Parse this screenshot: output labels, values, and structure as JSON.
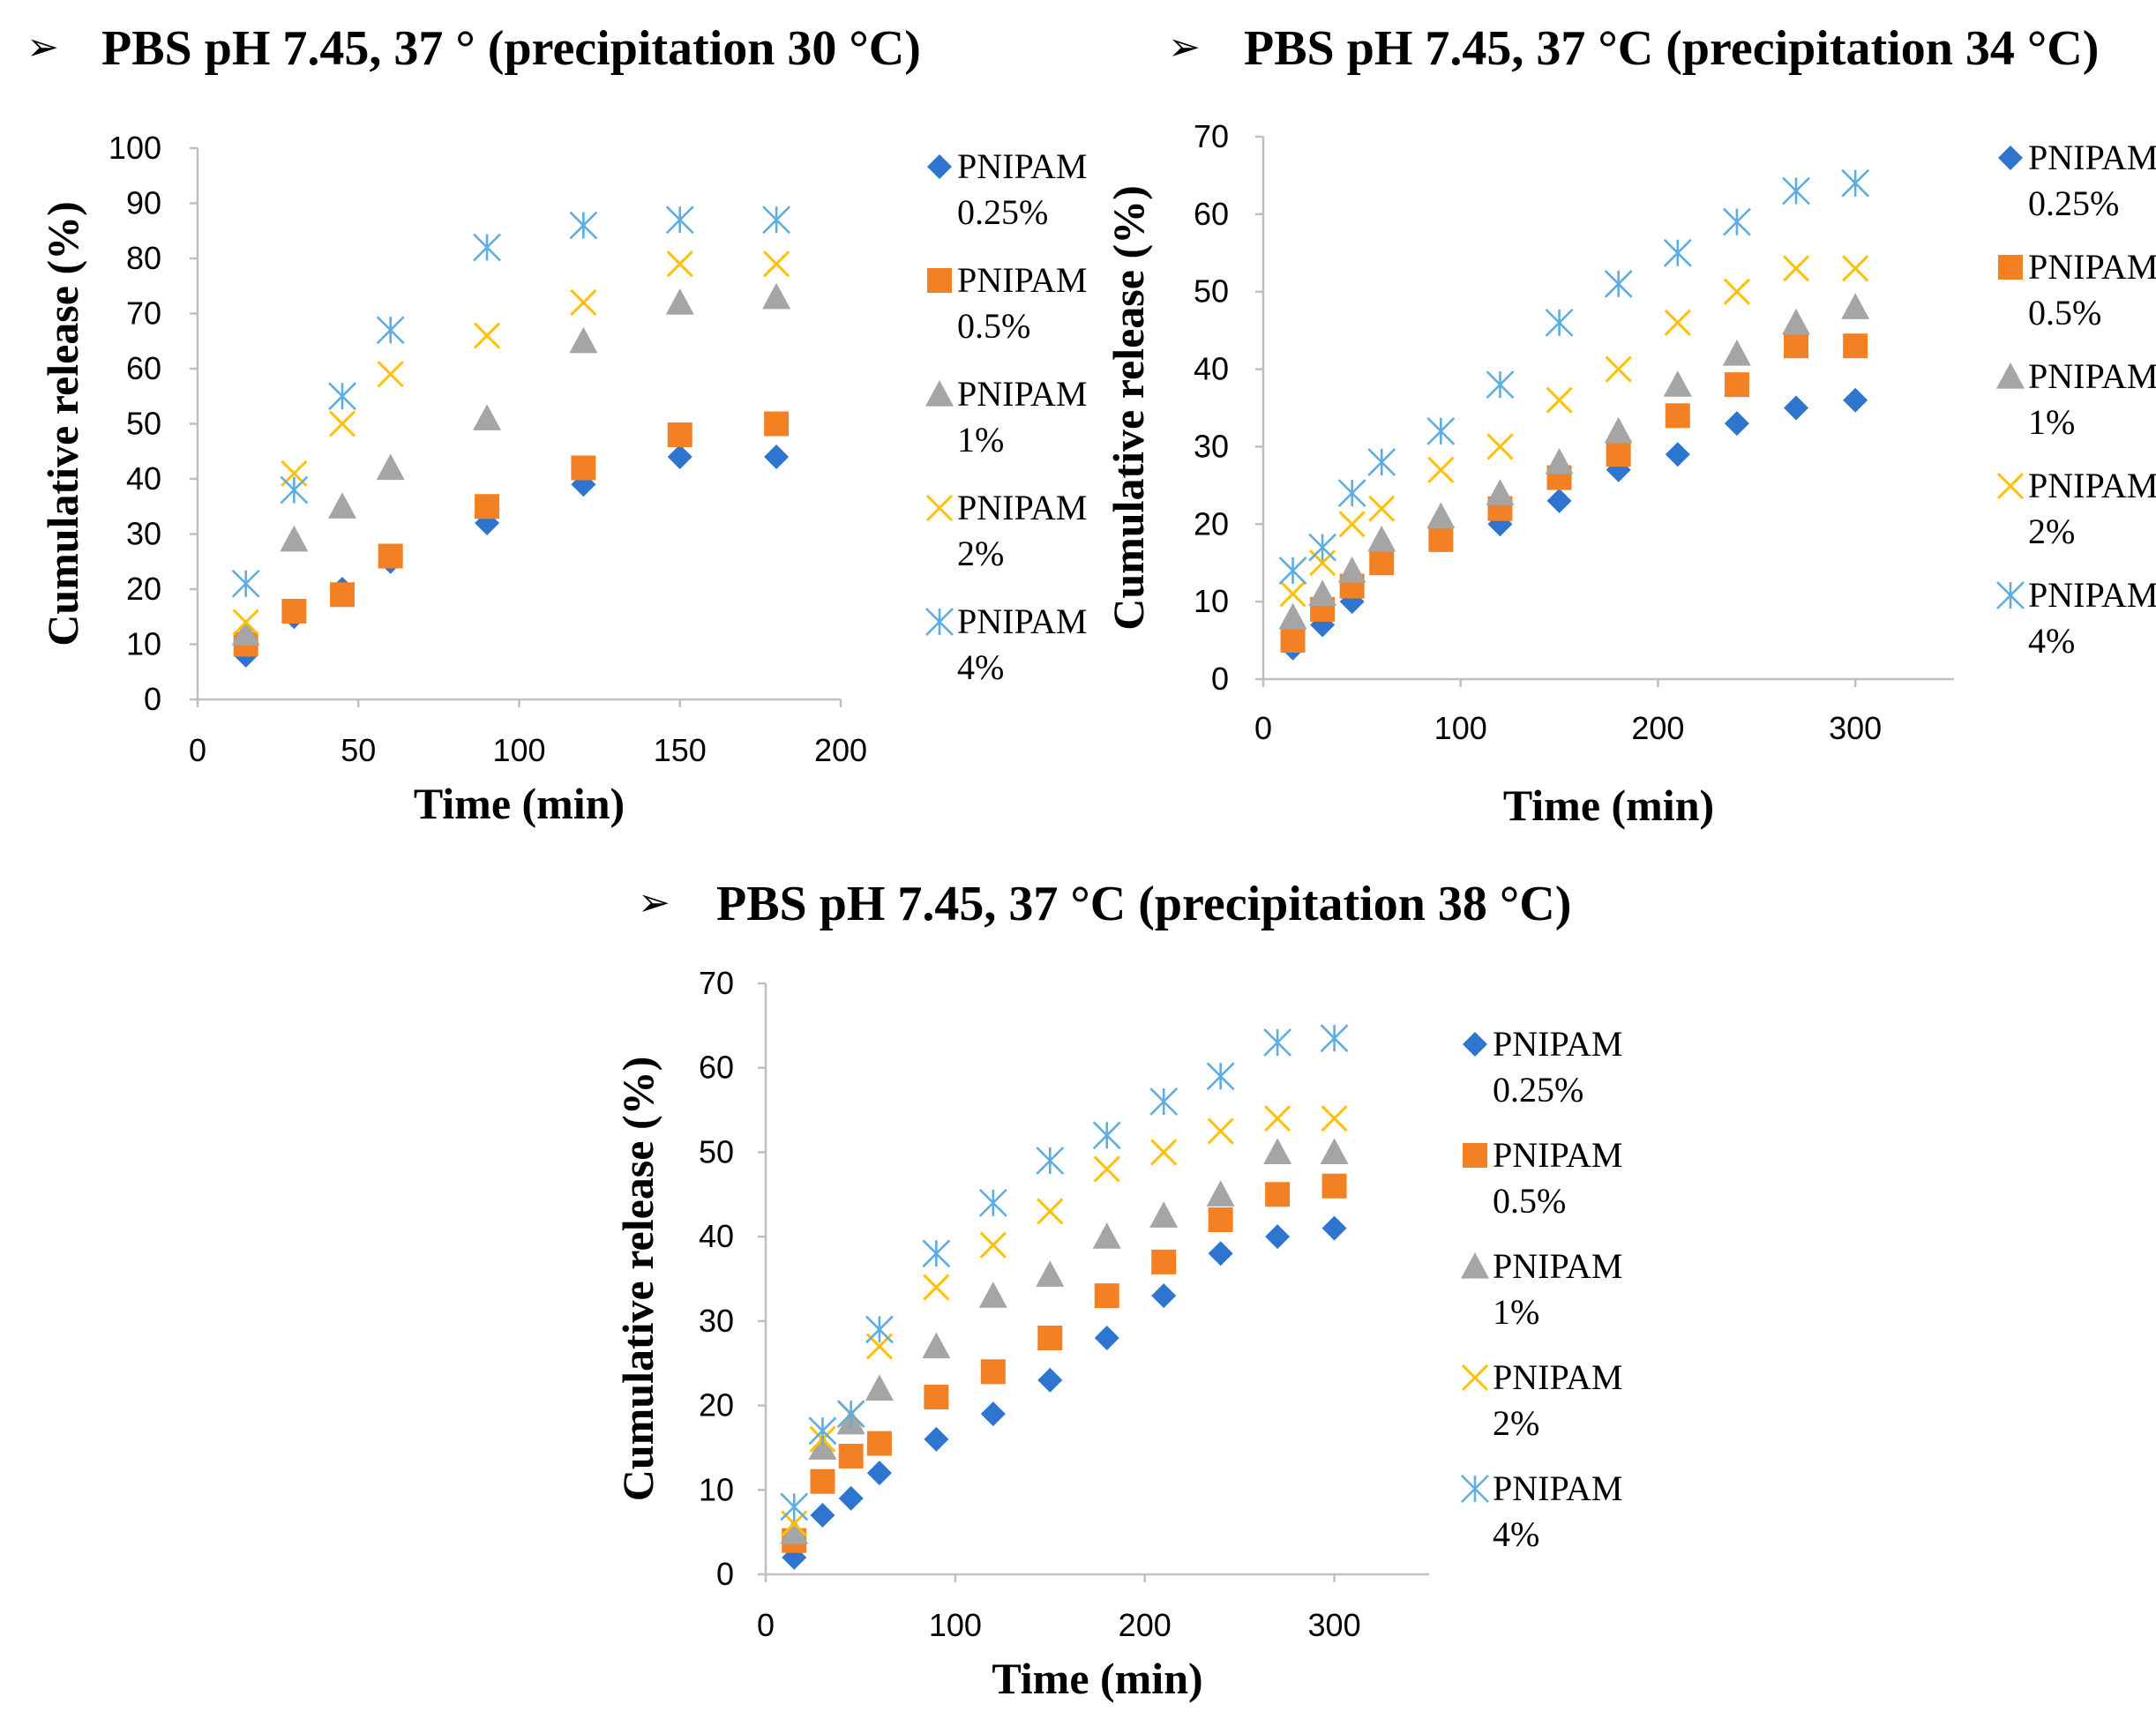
{
  "figure": {
    "bullet_glyph": "➢"
  },
  "chart_data": [
    {
      "type": "scatter",
      "title": "PBS pH 7.45, 37 ° (precipitation 30 °C)",
      "xlabel": "Time (min)",
      "ylabel": "Cumulative release (%)",
      "xlim": [
        0,
        200
      ],
      "ylim": [
        0,
        100
      ],
      "xticks": [
        0,
        50,
        100,
        150,
        200
      ],
      "yticks": [
        0,
        10,
        20,
        30,
        40,
        50,
        60,
        70,
        80,
        90,
        100
      ],
      "grid": false,
      "legend_position": "right",
      "x": [
        15,
        30,
        45,
        60,
        90,
        120,
        150,
        180
      ],
      "series": [
        {
          "name": "PNIPAM 0.25%",
          "legend_line1": "PNIPAM",
          "legend_line2": "0.25%",
          "marker": "diamond",
          "color": "#2e75cf",
          "values": [
            8,
            15,
            20,
            25,
            32,
            39,
            44,
            44
          ]
        },
        {
          "name": "PNIPAM 0.5%",
          "legend_line1": "PNIPAM",
          "legend_line2": "0.5%",
          "marker": "square",
          "color": "#f48024",
          "values": [
            10,
            16,
            19,
            26,
            35,
            42,
            48,
            50
          ]
        },
        {
          "name": "PNIPAM 1%",
          "legend_line1": "PNIPAM",
          "legend_line2": "1%",
          "marker": "triangle",
          "color": "#a5a5a5",
          "values": [
            12,
            29,
            35,
            42,
            51,
            65,
            72,
            73
          ]
        },
        {
          "name": "PNIPAM 2%",
          "legend_line1": "PNIPAM",
          "legend_line2": "2%",
          "marker": "x",
          "color": "#ffc000",
          "values": [
            14,
            41,
            50,
            59,
            66,
            72,
            79,
            79
          ]
        },
        {
          "name": "PNIPAM 4%",
          "legend_line1": "PNIPAM",
          "legend_line2": "4%",
          "marker": "star",
          "color": "#5dade2",
          "values": [
            21,
            38,
            55,
            67,
            82,
            86,
            87,
            87
          ]
        }
      ]
    },
    {
      "type": "scatter",
      "title": "PBS pH 7.45, 37 °C (precipitation 34 °C)",
      "xlabel": "Time (min)",
      "ylabel": "Cumulative release (%)",
      "xlim": [
        0,
        350
      ],
      "ylim": [
        0,
        70
      ],
      "xticks": [
        0,
        100,
        200,
        300
      ],
      "yticks": [
        0,
        10,
        20,
        30,
        40,
        50,
        60,
        70
      ],
      "grid": false,
      "legend_position": "right",
      "x": [
        15,
        30,
        45,
        60,
        90,
        120,
        150,
        180,
        210,
        240,
        270,
        300
      ],
      "series": [
        {
          "name": "PNIPAM 0.25%",
          "legend_line1": "PNIPAM",
          "legend_line2": "0.25%",
          "marker": "diamond",
          "color": "#2e75cf",
          "values": [
            4,
            7,
            10,
            15,
            18,
            20,
            23,
            27,
            29,
            33,
            35,
            36
          ]
        },
        {
          "name": "PNIPAM 0.5%",
          "legend_line1": "PNIPAM",
          "legend_line2": "0.5%",
          "marker": "square",
          "color": "#f48024",
          "values": [
            5,
            9,
            12,
            15,
            18,
            22,
            26,
            29,
            34,
            38,
            43,
            43
          ]
        },
        {
          "name": "PNIPAM 1%",
          "legend_line1": "PNIPAM",
          "legend_line2": "1%",
          "marker": "triangle",
          "color": "#a5a5a5",
          "values": [
            8,
            11,
            14,
            18,
            21,
            24,
            28,
            32,
            38,
            42,
            46,
            48
          ]
        },
        {
          "name": "PNIPAM 2%",
          "legend_line1": "PNIPAM",
          "legend_line2": "2%",
          "marker": "x",
          "color": "#ffc000",
          "values": [
            11,
            15,
            20,
            22,
            27,
            30,
            36,
            40,
            46,
            50,
            53,
            53
          ]
        },
        {
          "name": "PNIPAM 4%",
          "legend_line1": "PNIPAM",
          "legend_line2": "4%",
          "marker": "star",
          "color": "#5dade2",
          "values": [
            14,
            17,
            24,
            28,
            32,
            38,
            46,
            51,
            55,
            59,
            63,
            64
          ]
        }
      ]
    },
    {
      "type": "scatter",
      "title": "PBS pH 7.45, 37 °C (precipitation 38 °C)",
      "xlabel": "Time (min)",
      "ylabel": "Cumulative release (%)",
      "xlim": [
        0,
        350
      ],
      "ylim": [
        0,
        70
      ],
      "xticks": [
        0,
        100,
        200,
        300
      ],
      "yticks": [
        0,
        10,
        20,
        30,
        40,
        50,
        60,
        70
      ],
      "grid": false,
      "legend_position": "right",
      "x": [
        15,
        30,
        45,
        60,
        90,
        120,
        150,
        180,
        210,
        240,
        270,
        300
      ],
      "series": [
        {
          "name": "PNIPAM 0.25%",
          "legend_line1": "PNIPAM",
          "legend_line2": "0.25%",
          "marker": "diamond",
          "color": "#2e75cf",
          "values": [
            2,
            7,
            9,
            12,
            16,
            19,
            23,
            28,
            33,
            38,
            40,
            41
          ]
        },
        {
          "name": "PNIPAM 0.5%",
          "legend_line1": "PNIPAM",
          "legend_line2": "0.5%",
          "marker": "square",
          "color": "#f48024",
          "values": [
            4,
            11,
            14,
            15.5,
            21,
            24,
            28,
            33,
            37,
            42,
            45,
            46
          ]
        },
        {
          "name": "PNIPAM 1%",
          "legend_line1": "PNIPAM",
          "legend_line2": "1%",
          "marker": "triangle",
          "color": "#a5a5a5",
          "values": [
            5,
            15,
            18,
            22,
            27,
            33,
            35.5,
            40,
            42.5,
            45,
            50,
            50
          ]
        },
        {
          "name": "PNIPAM 2%",
          "legend_line1": "PNIPAM",
          "legend_line2": "2%",
          "marker": "x",
          "color": "#ffc000",
          "values": [
            6,
            16,
            19,
            27,
            34,
            39,
            43,
            48,
            50,
            52.5,
            54,
            54
          ]
        },
        {
          "name": "PNIPAM 4%",
          "legend_line1": "PNIPAM",
          "legend_line2": "4%",
          "marker": "star",
          "color": "#5dade2",
          "values": [
            8,
            17,
            19,
            29,
            38,
            44,
            49,
            52,
            56,
            59,
            63,
            63.5
          ]
        }
      ]
    }
  ]
}
